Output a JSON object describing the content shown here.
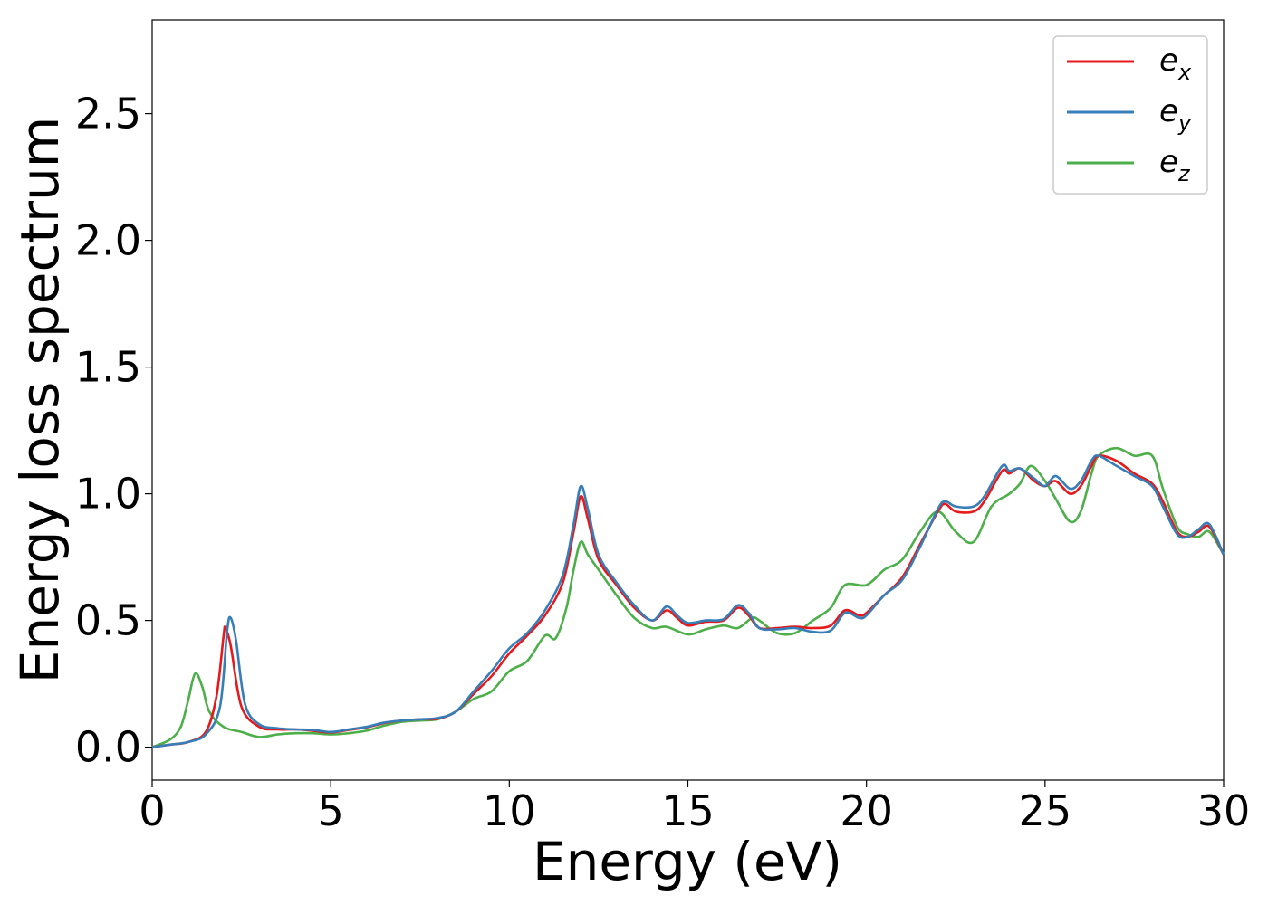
{
  "chart_data": {
    "type": "line",
    "xlabel": "Energy (eV)",
    "ylabel": "Energy loss spectrum",
    "xlim": [
      0,
      30
    ],
    "ylim": [
      -0.13,
      2.87
    ],
    "xticks": [
      0,
      5,
      10,
      15,
      20,
      25,
      30
    ],
    "yticks": [
      0.0,
      0.5,
      1.0,
      1.5,
      2.0,
      2.5
    ],
    "xtick_labels": [
      "0",
      "5",
      "10",
      "15",
      "20",
      "25",
      "30"
    ],
    "ytick_labels": [
      "0.0",
      "0.5",
      "1.0",
      "1.5",
      "2.0",
      "2.5"
    ],
    "grid": false,
    "legend_position": "top-right",
    "series": [
      {
        "name": "e_x",
        "name_base": "e",
        "name_sub": "x",
        "color": "#e41a1c",
        "points": [
          [
            0,
            0
          ],
          [
            0.5,
            0.01
          ],
          [
            1.0,
            0.02
          ],
          [
            1.5,
            0.06
          ],
          [
            1.8,
            0.2
          ],
          [
            2.0,
            0.44
          ],
          [
            2.05,
            0.47
          ],
          [
            2.2,
            0.4
          ],
          [
            2.5,
            0.16
          ],
          [
            3.0,
            0.08
          ],
          [
            3.5,
            0.07
          ],
          [
            4.0,
            0.07
          ],
          [
            4.5,
            0.065
          ],
          [
            5.0,
            0.058
          ],
          [
            5.5,
            0.068
          ],
          [
            6.0,
            0.078
          ],
          [
            6.5,
            0.095
          ],
          [
            7.0,
            0.105
          ],
          [
            7.5,
            0.11
          ],
          [
            8.0,
            0.112
          ],
          [
            8.5,
            0.14
          ],
          [
            9.0,
            0.21
          ],
          [
            9.5,
            0.28
          ],
          [
            10.0,
            0.37
          ],
          [
            10.5,
            0.44
          ],
          [
            11.0,
            0.52
          ],
          [
            11.5,
            0.65
          ],
          [
            11.8,
            0.85
          ],
          [
            12.0,
            0.99
          ],
          [
            12.2,
            0.9
          ],
          [
            12.5,
            0.74
          ],
          [
            13.0,
            0.64
          ],
          [
            13.5,
            0.55
          ],
          [
            14.0,
            0.5
          ],
          [
            14.4,
            0.54
          ],
          [
            14.7,
            0.51
          ],
          [
            15.0,
            0.48
          ],
          [
            15.5,
            0.495
          ],
          [
            16.0,
            0.5
          ],
          [
            16.4,
            0.55
          ],
          [
            16.7,
            0.52
          ],
          [
            17.0,
            0.47
          ],
          [
            17.5,
            0.47
          ],
          [
            18.0,
            0.475
          ],
          [
            18.5,
            0.47
          ],
          [
            19.0,
            0.48
          ],
          [
            19.4,
            0.54
          ],
          [
            19.8,
            0.52
          ],
          [
            20.0,
            0.53
          ],
          [
            20.5,
            0.6
          ],
          [
            21.0,
            0.67
          ],
          [
            21.5,
            0.8
          ],
          [
            22.0,
            0.93
          ],
          [
            22.2,
            0.96
          ],
          [
            22.5,
            0.93
          ],
          [
            23.0,
            0.93
          ],
          [
            23.3,
            0.97
          ],
          [
            23.8,
            1.09
          ],
          [
            24.0,
            1.08
          ],
          [
            24.3,
            1.1
          ],
          [
            24.7,
            1.05
          ],
          [
            25.0,
            1.03
          ],
          [
            25.3,
            1.05
          ],
          [
            25.7,
            1.0
          ],
          [
            26.0,
            1.03
          ],
          [
            26.3,
            1.11
          ],
          [
            26.5,
            1.15
          ],
          [
            27.0,
            1.13
          ],
          [
            27.5,
            1.08
          ],
          [
            28.0,
            1.04
          ],
          [
            28.3,
            0.97
          ],
          [
            28.7,
            0.85
          ],
          [
            29.0,
            0.83
          ],
          [
            29.3,
            0.85
          ],
          [
            29.6,
            0.87
          ],
          [
            30.0,
            0.76
          ]
        ]
      },
      {
        "name": "e_y",
        "name_base": "e",
        "name_sub": "y",
        "color": "#377eb8",
        "points": [
          [
            0,
            0
          ],
          [
            0.5,
            0.01
          ],
          [
            1.0,
            0.02
          ],
          [
            1.5,
            0.05
          ],
          [
            1.9,
            0.16
          ],
          [
            2.1,
            0.46
          ],
          [
            2.2,
            0.51
          ],
          [
            2.35,
            0.42
          ],
          [
            2.6,
            0.17
          ],
          [
            3.0,
            0.09
          ],
          [
            3.5,
            0.075
          ],
          [
            4.0,
            0.07
          ],
          [
            4.5,
            0.068
          ],
          [
            5.0,
            0.06
          ],
          [
            5.5,
            0.07
          ],
          [
            6.0,
            0.08
          ],
          [
            6.5,
            0.097
          ],
          [
            7.0,
            0.105
          ],
          [
            7.5,
            0.11
          ],
          [
            8.0,
            0.115
          ],
          [
            8.5,
            0.14
          ],
          [
            9.0,
            0.22
          ],
          [
            9.5,
            0.3
          ],
          [
            10.0,
            0.39
          ],
          [
            10.5,
            0.45
          ],
          [
            11.0,
            0.54
          ],
          [
            11.5,
            0.68
          ],
          [
            11.8,
            0.88
          ],
          [
            12.0,
            1.03
          ],
          [
            12.2,
            0.94
          ],
          [
            12.5,
            0.76
          ],
          [
            13.0,
            0.65
          ],
          [
            13.5,
            0.56
          ],
          [
            14.0,
            0.5
          ],
          [
            14.4,
            0.555
          ],
          [
            14.7,
            0.52
          ],
          [
            15.0,
            0.49
          ],
          [
            15.5,
            0.5
          ],
          [
            16.0,
            0.505
          ],
          [
            16.4,
            0.56
          ],
          [
            16.7,
            0.53
          ],
          [
            17.0,
            0.47
          ],
          [
            17.5,
            0.465
          ],
          [
            18.0,
            0.47
          ],
          [
            18.5,
            0.455
          ],
          [
            19.0,
            0.46
          ],
          [
            19.4,
            0.53
          ],
          [
            19.8,
            0.51
          ],
          [
            20.0,
            0.52
          ],
          [
            20.5,
            0.6
          ],
          [
            21.0,
            0.66
          ],
          [
            21.5,
            0.79
          ],
          [
            22.0,
            0.94
          ],
          [
            22.2,
            0.97
          ],
          [
            22.5,
            0.95
          ],
          [
            23.0,
            0.95
          ],
          [
            23.3,
            0.99
          ],
          [
            23.8,
            1.11
          ],
          [
            24.0,
            1.09
          ],
          [
            24.3,
            1.1
          ],
          [
            24.7,
            1.06
          ],
          [
            25.0,
            1.03
          ],
          [
            25.3,
            1.07
          ],
          [
            25.7,
            1.02
          ],
          [
            26.0,
            1.05
          ],
          [
            26.3,
            1.13
          ],
          [
            26.5,
            1.15
          ],
          [
            27.0,
            1.11
          ],
          [
            27.5,
            1.07
          ],
          [
            28.0,
            1.03
          ],
          [
            28.3,
            0.95
          ],
          [
            28.7,
            0.84
          ],
          [
            29.0,
            0.83
          ],
          [
            29.3,
            0.86
          ],
          [
            29.6,
            0.88
          ],
          [
            30.0,
            0.76
          ]
        ]
      },
      {
        "name": "e_z",
        "name_base": "e",
        "name_sub": "z",
        "color": "#4daf4a",
        "points": [
          [
            0,
            0
          ],
          [
            0.5,
            0.03
          ],
          [
            0.8,
            0.08
          ],
          [
            1.0,
            0.18
          ],
          [
            1.2,
            0.29
          ],
          [
            1.4,
            0.24
          ],
          [
            1.6,
            0.14
          ],
          [
            2.0,
            0.08
          ],
          [
            2.5,
            0.06
          ],
          [
            3.0,
            0.04
          ],
          [
            3.5,
            0.05
          ],
          [
            4.0,
            0.055
          ],
          [
            4.5,
            0.055
          ],
          [
            5.0,
            0.05
          ],
          [
            5.5,
            0.055
          ],
          [
            6.0,
            0.065
          ],
          [
            6.5,
            0.085
          ],
          [
            7.0,
            0.1
          ],
          [
            7.5,
            0.105
          ],
          [
            8.0,
            0.11
          ],
          [
            8.5,
            0.14
          ],
          [
            9.0,
            0.19
          ],
          [
            9.5,
            0.22
          ],
          [
            10.0,
            0.3
          ],
          [
            10.5,
            0.34
          ],
          [
            11.0,
            0.44
          ],
          [
            11.3,
            0.43
          ],
          [
            11.6,
            0.55
          ],
          [
            11.8,
            0.7
          ],
          [
            12.0,
            0.81
          ],
          [
            12.2,
            0.76
          ],
          [
            12.5,
            0.7
          ],
          [
            13.0,
            0.6
          ],
          [
            13.5,
            0.51
          ],
          [
            14.0,
            0.47
          ],
          [
            14.4,
            0.475
          ],
          [
            15.0,
            0.445
          ],
          [
            15.5,
            0.465
          ],
          [
            16.0,
            0.48
          ],
          [
            16.4,
            0.47
          ],
          [
            16.8,
            0.51
          ],
          [
            17.0,
            0.5
          ],
          [
            17.5,
            0.45
          ],
          [
            18.0,
            0.45
          ],
          [
            18.5,
            0.5
          ],
          [
            19.0,
            0.55
          ],
          [
            19.4,
            0.64
          ],
          [
            20.0,
            0.64
          ],
          [
            20.5,
            0.7
          ],
          [
            21.0,
            0.74
          ],
          [
            21.5,
            0.85
          ],
          [
            22.0,
            0.93
          ],
          [
            22.5,
            0.85
          ],
          [
            23.0,
            0.81
          ],
          [
            23.5,
            0.95
          ],
          [
            24.0,
            1.0
          ],
          [
            24.3,
            1.04
          ],
          [
            24.6,
            1.11
          ],
          [
            25.0,
            1.05
          ],
          [
            25.3,
            0.98
          ],
          [
            25.7,
            0.89
          ],
          [
            26.0,
            0.93
          ],
          [
            26.3,
            1.08
          ],
          [
            26.5,
            1.15
          ],
          [
            27.0,
            1.18
          ],
          [
            27.5,
            1.15
          ],
          [
            28.0,
            1.15
          ],
          [
            28.3,
            1.02
          ],
          [
            28.7,
            0.87
          ],
          [
            29.0,
            0.84
          ],
          [
            29.3,
            0.83
          ],
          [
            29.6,
            0.85
          ],
          [
            30.0,
            0.76
          ]
        ]
      }
    ]
  }
}
